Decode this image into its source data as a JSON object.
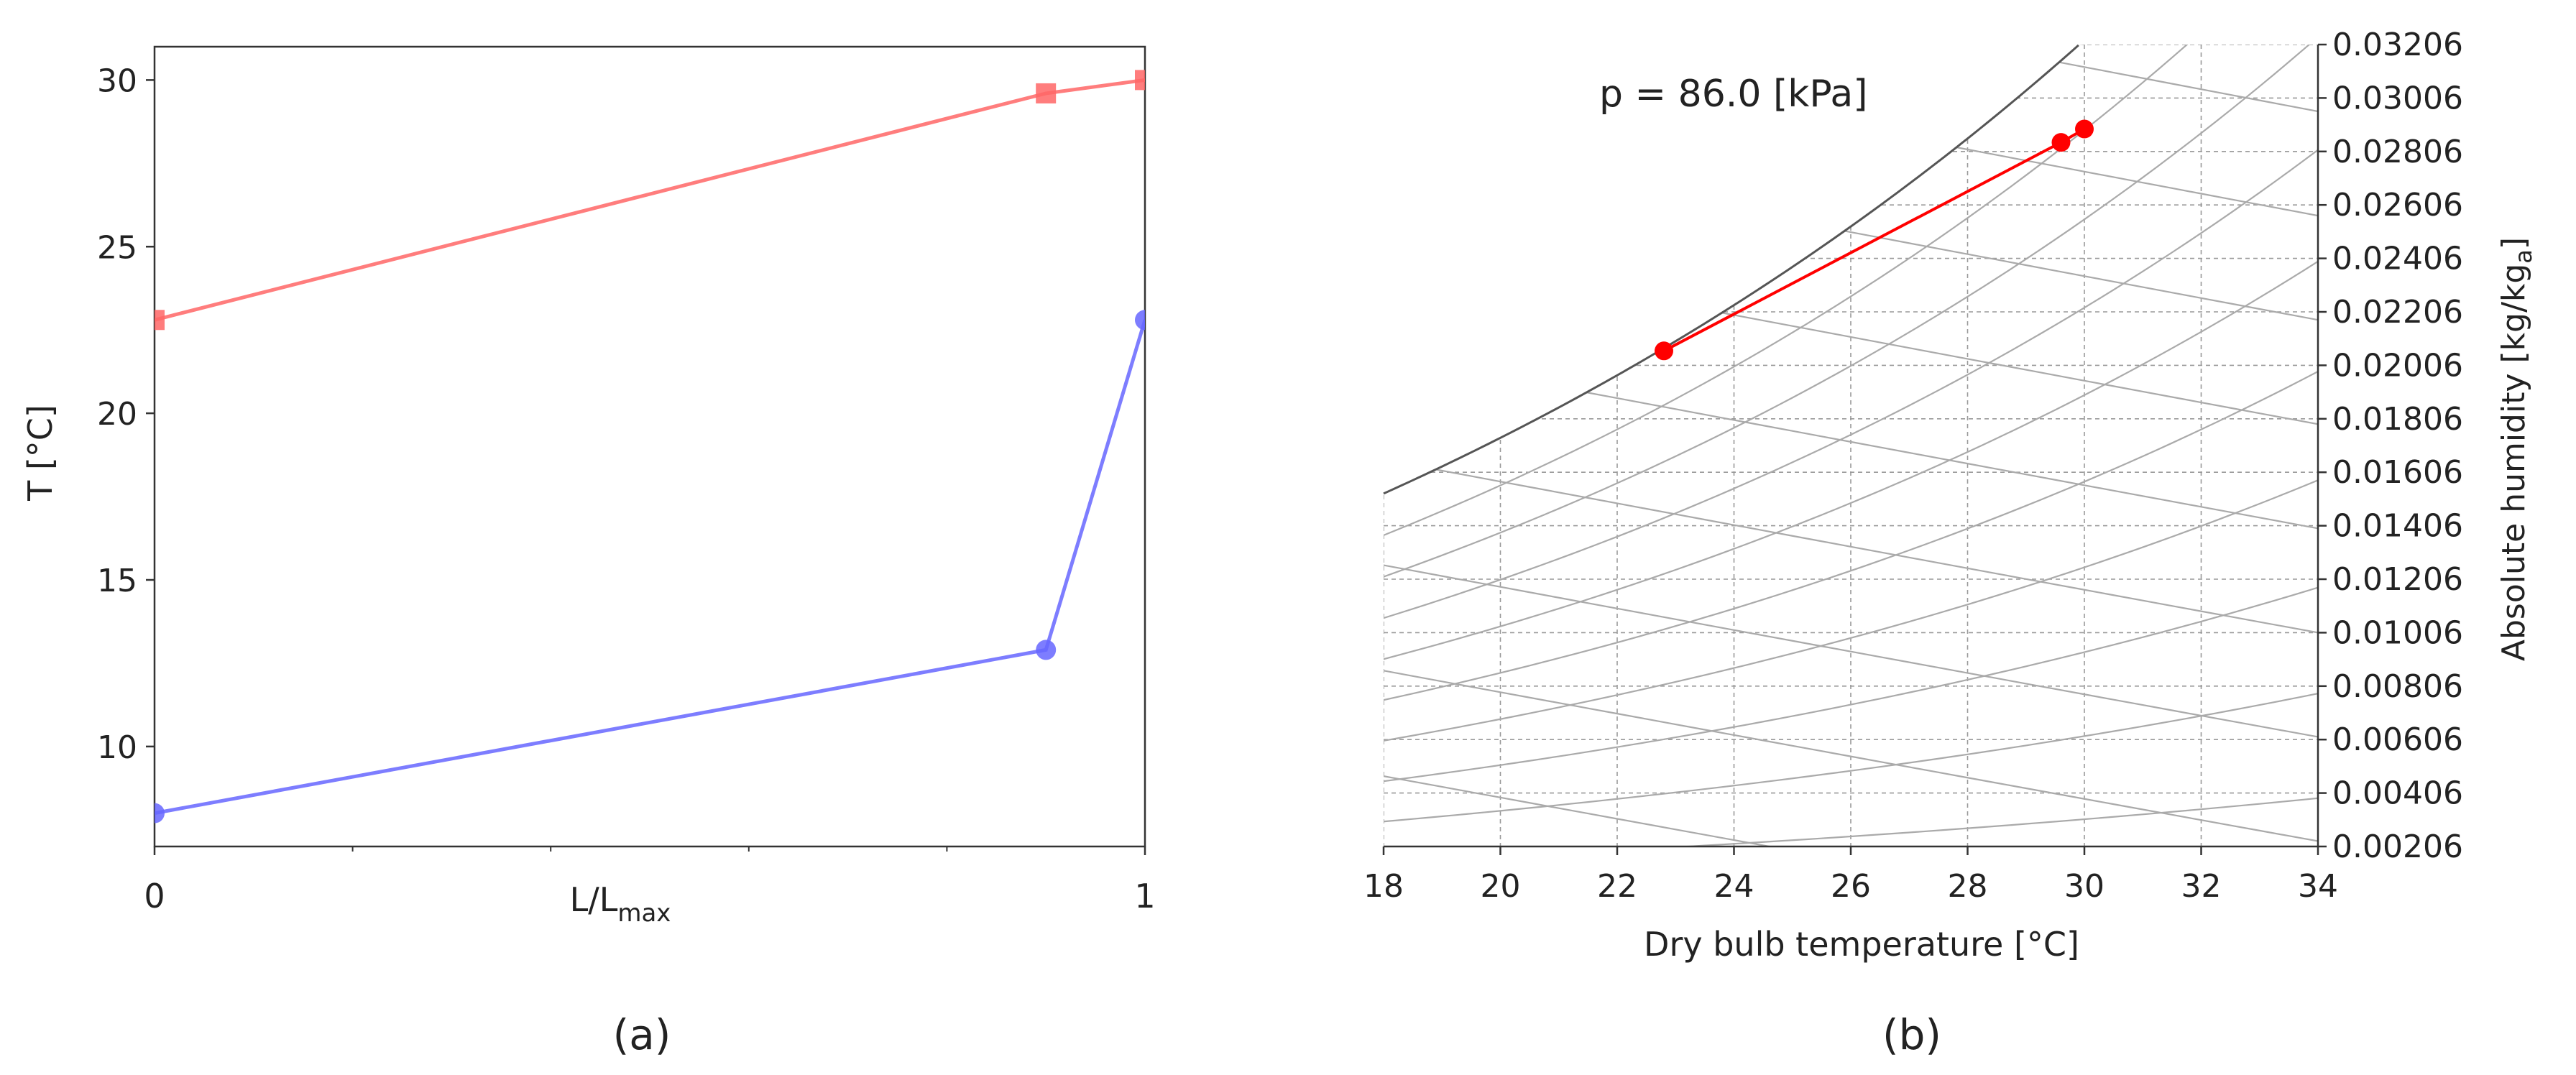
{
  "chart_data": [
    {
      "panel_label": "(a)",
      "type": "line",
      "xlabel": "L/L",
      "xlabel_subscript": "max",
      "ylabel": "T [°C]",
      "xlim": [
        0,
        1
      ],
      "ylim": [
        7,
        31
      ],
      "xticks": [
        "0",
        "1"
      ],
      "yticks": [
        "10",
        "15",
        "20",
        "25",
        "30"
      ],
      "grid": false,
      "series": [
        {
          "marker": "square",
          "color": "#ff6666",
          "x": [
            0,
            0.9,
            1
          ],
          "y": [
            22.8,
            29.6,
            30.0
          ]
        },
        {
          "marker": "circle",
          "color": "#6666ff",
          "x": [
            0,
            0.9,
            1
          ],
          "y": [
            8.0,
            12.9,
            22.8
          ]
        }
      ]
    },
    {
      "panel_label": "(b)",
      "type": "line",
      "annotation": "p = 86.0 [kPa]",
      "xlabel": "Dry bulb temperature [°C]",
      "ylabel": "Absolute humidity [kg/kg",
      "ylabel_subscript": "a",
      "ylabel_tail": "]",
      "xlim": [
        18,
        34
      ],
      "ylim": [
        0.00206,
        0.03206
      ],
      "xticks": [
        "18",
        "20",
        "22",
        "24",
        "26",
        "28",
        "30",
        "32",
        "34"
      ],
      "yticks": [
        "0.00206",
        "0.00406",
        "0.00606",
        "0.00806",
        "0.01006",
        "0.01206",
        "0.01406",
        "0.01606",
        "0.01806",
        "0.02006",
        "0.02206",
        "0.02406",
        "0.02606",
        "0.02806",
        "0.03006",
        "0.03206"
      ],
      "grid": true,
      "series": [
        {
          "color": "#ff0000",
          "marker": "circle",
          "x": [
            22.8,
            29.6,
            30.0
          ],
          "y": [
            0.0206,
            0.0284,
            0.0289
          ]
        }
      ]
    }
  ]
}
